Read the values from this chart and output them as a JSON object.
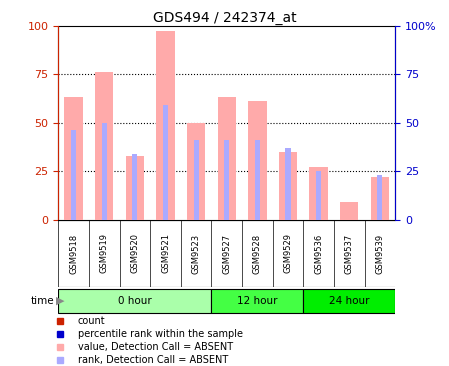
{
  "title": "GDS494 / 242374_at",
  "samples": [
    "GSM9518",
    "GSM9519",
    "GSM9520",
    "GSM9521",
    "GSM9523",
    "GSM9527",
    "GSM9528",
    "GSM9529",
    "GSM9536",
    "GSM9537",
    "GSM9539"
  ],
  "value_absent": [
    63,
    76,
    33,
    97,
    50,
    63,
    61,
    35,
    27,
    9,
    22
  ],
  "rank_absent": [
    46,
    50,
    34,
    59,
    41,
    41,
    41,
    37,
    25,
    0,
    23
  ],
  "groups": [
    {
      "label": "0 hour",
      "start": 0,
      "end": 5,
      "color": "#aaffaa"
    },
    {
      "label": "12 hour",
      "start": 5,
      "end": 8,
      "color": "#44ff44"
    },
    {
      "label": "24 hour",
      "start": 8,
      "end": 11,
      "color": "#00ee00"
    }
  ],
  "ylim": [
    0,
    100
  ],
  "yticks": [
    0,
    25,
    50,
    75,
    100
  ],
  "value_color": "#ffaaaa",
  "rank_color": "#aaaaff",
  "left_axis_color": "#cc2200",
  "right_axis_color": "#0000cc",
  "bg_color": "#ffffff",
  "grid_color": "#000000",
  "label_bg_color": "#cccccc",
  "legend_items": [
    {
      "color": "#cc2200",
      "label": "count"
    },
    {
      "color": "#0000cc",
      "label": "percentile rank within the sample"
    },
    {
      "color": "#ffaaaa",
      "label": "value, Detection Call = ABSENT"
    },
    {
      "color": "#aaaaff",
      "label": "rank, Detection Call = ABSENT"
    }
  ]
}
